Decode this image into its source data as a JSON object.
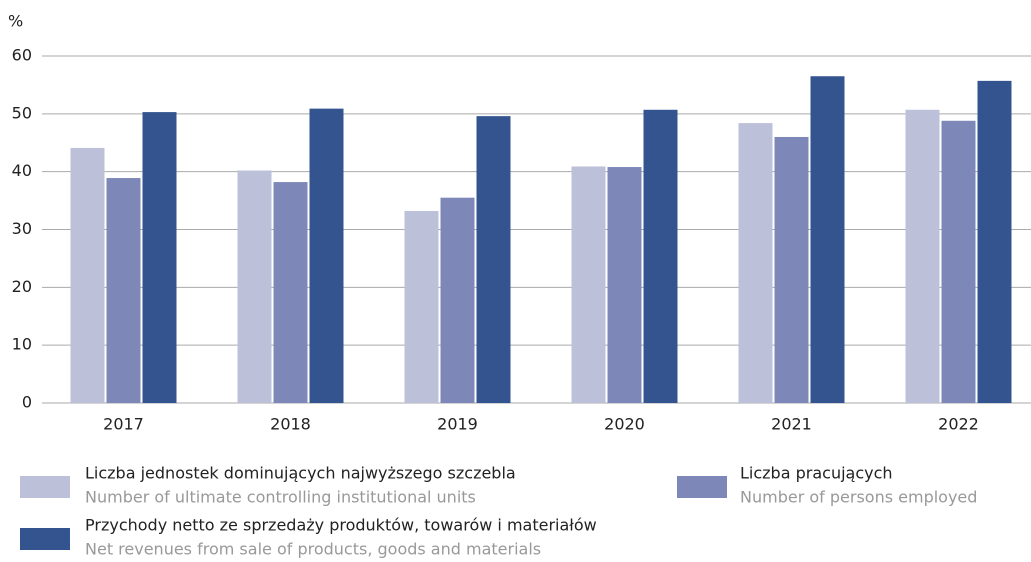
{
  "chart_data": {
    "type": "bar",
    "y_label": "%",
    "categories": [
      "2017",
      "2018",
      "2019",
      "2020",
      "2021",
      "2022"
    ],
    "series": [
      {
        "name": "Liczba jednostek dominujących najwyższego szczebla",
        "name_en": "Number of ultimate controlling institutional units",
        "color": "#bcc0d9",
        "values": [
          44.1,
          40.2,
          33.2,
          40.9,
          48.4,
          50.7
        ]
      },
      {
        "name": "Liczba pracujących",
        "name_en": "Number of persons employed",
        "color": "#7d88b8",
        "values": [
          38.9,
          38.2,
          35.5,
          40.8,
          46.0,
          48.8
        ]
      },
      {
        "name": "Przychody netto ze sprzedaży produktów, towarów i materiałów",
        "name_en": "Net revenues from sale of products, goods and materials",
        "color": "#33548f",
        "values": [
          50.3,
          50.9,
          49.6,
          50.7,
          56.5,
          55.7
        ]
      }
    ],
    "ylim": [
      0,
      60
    ],
    "yticks": [
      0,
      10,
      20,
      30,
      40,
      50,
      60
    ],
    "grid": true
  }
}
